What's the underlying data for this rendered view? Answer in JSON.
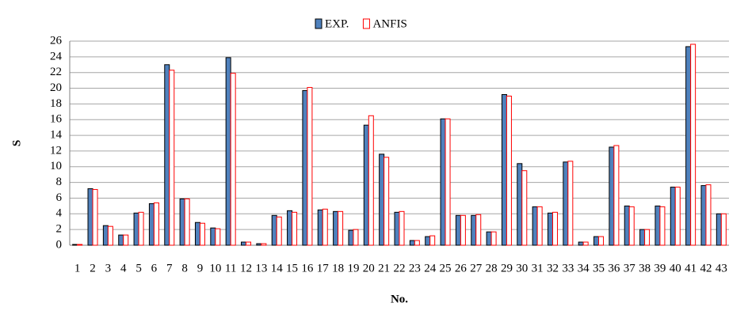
{
  "chart_data": {
    "type": "bar",
    "x_label": "No.",
    "y_label": "S",
    "categories": [
      "1",
      "2",
      "3",
      "4",
      "5",
      "6",
      "7",
      "8",
      "9",
      "10",
      "11",
      "12",
      "13",
      "14",
      "15",
      "16",
      "17",
      "18",
      "19",
      "20",
      "21",
      "22",
      "23",
      "24",
      "25",
      "26",
      "27",
      "28",
      "29",
      "30",
      "31",
      "32",
      "33",
      "34",
      "35",
      "36",
      "37",
      "38",
      "39",
      "40",
      "41",
      "42",
      "43"
    ],
    "series": [
      {
        "name": "EXP.",
        "color": "#4f81bd",
        "edge": "#000000",
        "values": [
          0.1,
          7.2,
          2.5,
          1.3,
          4.1,
          5.3,
          23.0,
          5.9,
          2.9,
          2.2,
          23.9,
          0.4,
          0.2,
          3.8,
          4.4,
          19.7,
          4.5,
          4.3,
          1.9,
          15.3,
          11.6,
          4.2,
          0.6,
          1.1,
          16.1,
          3.8,
          3.8,
          1.7,
          19.2,
          10.4,
          4.9,
          4.1,
          10.6,
          0.4,
          1.1,
          12.5,
          5.0,
          2.0,
          5.0,
          7.4,
          25.3,
          7.6,
          4.0
        ]
      },
      {
        "name": "ANFIS",
        "color": "#ffffff",
        "edge": "#ff0000",
        "values": [
          0.1,
          7.1,
          2.4,
          1.3,
          4.2,
          5.4,
          22.3,
          5.9,
          2.8,
          2.1,
          21.9,
          0.4,
          0.2,
          3.6,
          4.2,
          20.1,
          4.6,
          4.3,
          2.0,
          16.5,
          11.2,
          4.3,
          0.6,
          1.2,
          16.1,
          3.8,
          3.9,
          1.7,
          19.0,
          9.5,
          4.9,
          4.2,
          10.7,
          0.4,
          1.1,
          12.7,
          4.9,
          2.0,
          4.9,
          7.4,
          25.6,
          7.7,
          4.0
        ]
      }
    ],
    "ylim": [
      0,
      26
    ],
    "yticks": [
      0,
      2,
      4,
      6,
      8,
      10,
      12,
      14,
      16,
      18,
      20,
      22,
      24,
      26
    ],
    "grid": true,
    "legend": "top"
  }
}
